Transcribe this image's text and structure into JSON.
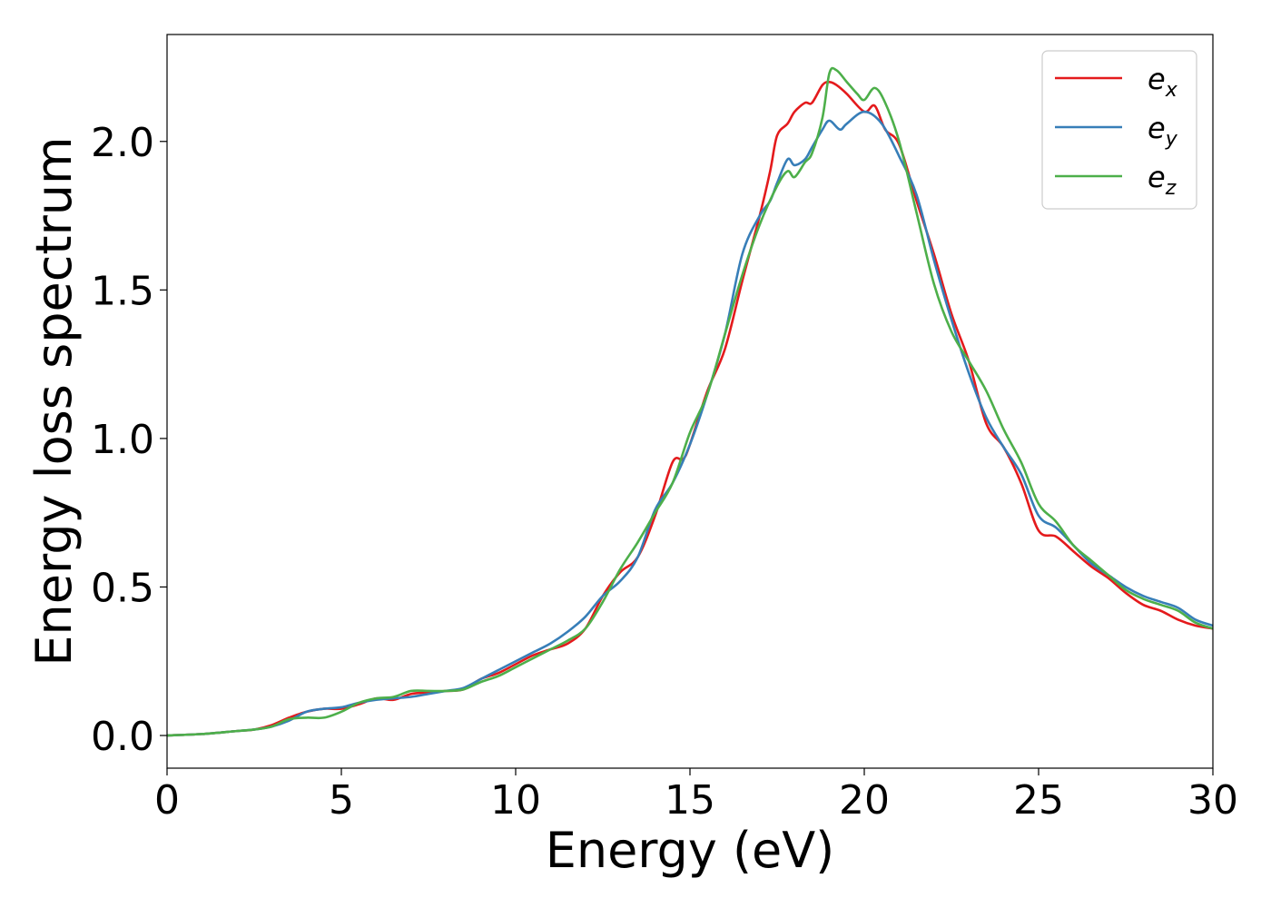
{
  "chart_data": {
    "type": "line",
    "xlabel": "Energy (eV)",
    "ylabel": "Energy loss spectrum",
    "xlim": [
      0,
      30
    ],
    "ylim": [
      -0.11,
      2.36
    ],
    "xticks": [
      0,
      5,
      10,
      15,
      20,
      25,
      30
    ],
    "xtick_labels": [
      "0",
      "5",
      "10",
      "15",
      "20",
      "25",
      "30"
    ],
    "yticks": [
      0.0,
      0.5,
      1.0,
      1.5,
      2.0
    ],
    "ytick_labels": [
      "0.0",
      "0.5",
      "1.0",
      "1.5",
      "2.0"
    ],
    "grid": false,
    "legend_position": "top-right",
    "series": [
      {
        "name": "e_x",
        "label_main": "e",
        "label_sub": "x",
        "color": "#e41a1c",
        "x": [
          0,
          1,
          2,
          2.5,
          3,
          3.5,
          4,
          4.5,
          5,
          5.5,
          6,
          6.5,
          7,
          7.5,
          8,
          8.5,
          9,
          9.5,
          10,
          10.5,
          11,
          11.5,
          12,
          12.5,
          13,
          13.5,
          14,
          14.5,
          14.8,
          15,
          15.5,
          16,
          16.5,
          17,
          17.3,
          17.5,
          17.8,
          18,
          18.3,
          18.5,
          18.8,
          19,
          19.2,
          19.5,
          20,
          20.3,
          20.6,
          21,
          21.5,
          22,
          22.5,
          23,
          23.5,
          24,
          24.5,
          25,
          25.5,
          26,
          26.5,
          27,
          27.5,
          28,
          28.5,
          29,
          29.5,
          30
        ],
        "y": [
          0,
          0.005,
          0.015,
          0.02,
          0.035,
          0.06,
          0.08,
          0.09,
          0.09,
          0.105,
          0.125,
          0.12,
          0.14,
          0.145,
          0.15,
          0.155,
          0.19,
          0.21,
          0.24,
          0.27,
          0.29,
          0.31,
          0.36,
          0.47,
          0.55,
          0.6,
          0.74,
          0.92,
          0.93,
          0.98,
          1.16,
          1.3,
          1.53,
          1.75,
          1.9,
          2.02,
          2.06,
          2.1,
          2.13,
          2.13,
          2.19,
          2.2,
          2.19,
          2.16,
          2.1,
          2.12,
          2.04,
          1.99,
          1.8,
          1.62,
          1.42,
          1.26,
          1.05,
          0.97,
          0.85,
          0.69,
          0.67,
          0.62,
          0.57,
          0.53,
          0.48,
          0.44,
          0.42,
          0.39,
          0.37,
          0.36
        ]
      },
      {
        "name": "e_y",
        "label_main": "e",
        "label_sub": "y",
        "color": "#377eb8",
        "x": [
          0,
          1,
          2,
          2.5,
          3,
          3.5,
          4,
          4.5,
          5,
          5.5,
          6,
          6.5,
          7,
          7.5,
          8,
          8.5,
          9,
          9.5,
          10,
          10.5,
          11,
          11.5,
          12,
          12.5,
          13,
          13.5,
          14,
          14.5,
          15,
          15.5,
          16,
          16.5,
          17,
          17.3,
          17.5,
          17.8,
          18,
          18.3,
          18.5,
          18.8,
          19,
          19.3,
          19.5,
          20,
          20.5,
          21,
          21.5,
          22,
          22.5,
          23,
          23.5,
          24,
          24.5,
          25,
          25.5,
          26,
          26.5,
          27,
          27.5,
          28,
          28.5,
          29,
          29.5,
          30
        ],
        "y": [
          0,
          0.005,
          0.015,
          0.02,
          0.03,
          0.05,
          0.08,
          0.09,
          0.095,
          0.11,
          0.12,
          0.125,
          0.13,
          0.14,
          0.15,
          0.16,
          0.19,
          0.22,
          0.25,
          0.28,
          0.31,
          0.35,
          0.4,
          0.47,
          0.52,
          0.6,
          0.76,
          0.85,
          0.98,
          1.15,
          1.35,
          1.62,
          1.75,
          1.8,
          1.86,
          1.94,
          1.92,
          1.94,
          1.98,
          2.04,
          2.07,
          2.04,
          2.06,
          2.1,
          2.06,
          1.95,
          1.82,
          1.6,
          1.4,
          1.22,
          1.07,
          0.97,
          0.88,
          0.74,
          0.7,
          0.64,
          0.58,
          0.54,
          0.5,
          0.47,
          0.45,
          0.43,
          0.39,
          0.37
        ]
      },
      {
        "name": "e_z",
        "label_main": "e",
        "label_sub": "z",
        "color": "#4daf4a",
        "x": [
          0,
          1,
          2,
          2.5,
          3,
          3.5,
          4,
          4.5,
          5,
          5.5,
          6,
          6.5,
          7,
          7.5,
          8,
          8.5,
          9,
          9.5,
          10,
          10.5,
          11,
          11.5,
          12,
          12.5,
          13,
          13.5,
          14,
          14.5,
          15,
          15.5,
          16,
          16.5,
          17,
          17.5,
          17.8,
          18,
          18.3,
          18.5,
          18.8,
          19,
          19.2,
          19.5,
          19.8,
          20,
          20.3,
          20.6,
          21,
          21.5,
          22,
          22.5,
          23,
          23.5,
          24,
          24.5,
          25,
          25.5,
          26,
          26.5,
          27,
          27.5,
          28,
          28.5,
          29,
          29.5,
          30
        ],
        "y": [
          0,
          0.005,
          0.015,
          0.02,
          0.03,
          0.055,
          0.06,
          0.06,
          0.08,
          0.11,
          0.125,
          0.13,
          0.15,
          0.15,
          0.15,
          0.155,
          0.18,
          0.2,
          0.23,
          0.26,
          0.29,
          0.32,
          0.36,
          0.45,
          0.56,
          0.65,
          0.75,
          0.85,
          1.02,
          1.15,
          1.35,
          1.55,
          1.72,
          1.85,
          1.9,
          1.88,
          1.93,
          1.96,
          2.08,
          2.23,
          2.24,
          2.2,
          2.16,
          2.14,
          2.18,
          2.13,
          2.0,
          1.76,
          1.52,
          1.36,
          1.26,
          1.16,
          1.03,
          0.92,
          0.78,
          0.72,
          0.64,
          0.59,
          0.54,
          0.49,
          0.46,
          0.44,
          0.42,
          0.38,
          0.36
        ]
      }
    ]
  }
}
